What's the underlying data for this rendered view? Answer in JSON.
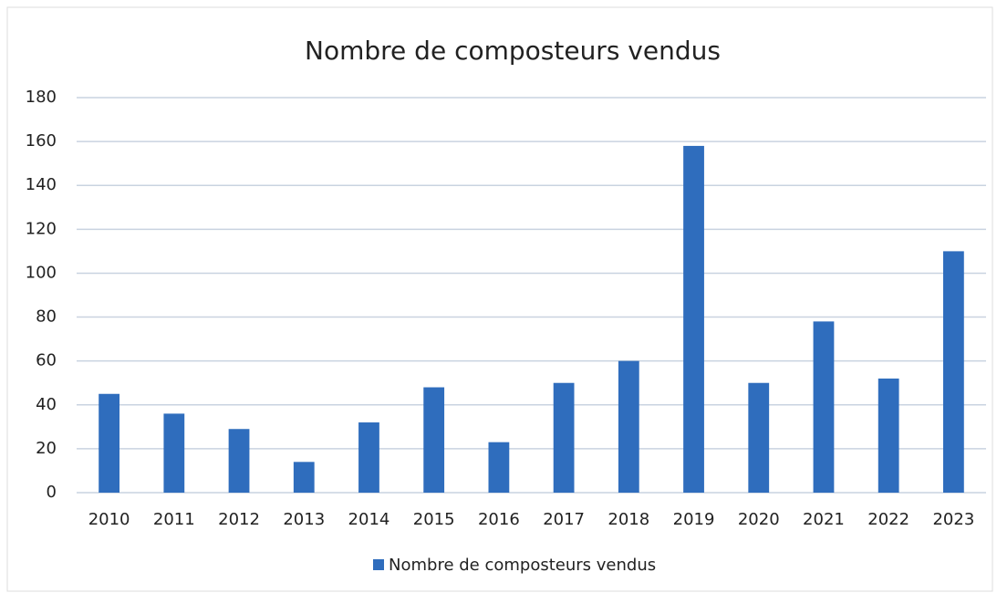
{
  "chart_data": {
    "type": "bar",
    "title": "Nombre de composteurs vendus",
    "categories": [
      "2010",
      "2011",
      "2012",
      "2013",
      "2014",
      "2015",
      "2016",
      "2017",
      "2018",
      "2019",
      "2020",
      "2021",
      "2022",
      "2023"
    ],
    "series": [
      {
        "name": "Nombre de composteurs vendus",
        "color": "#2f6dbd",
        "values": [
          45,
          36,
          29,
          14,
          32,
          48,
          23,
          50,
          60,
          158,
          50,
          78,
          52,
          110
        ]
      }
    ],
    "ylim": [
      0,
      180
    ],
    "yticks": [
      0,
      20,
      40,
      60,
      80,
      100,
      120,
      140,
      160,
      180
    ],
    "grid": true,
    "legend": "bottom"
  }
}
